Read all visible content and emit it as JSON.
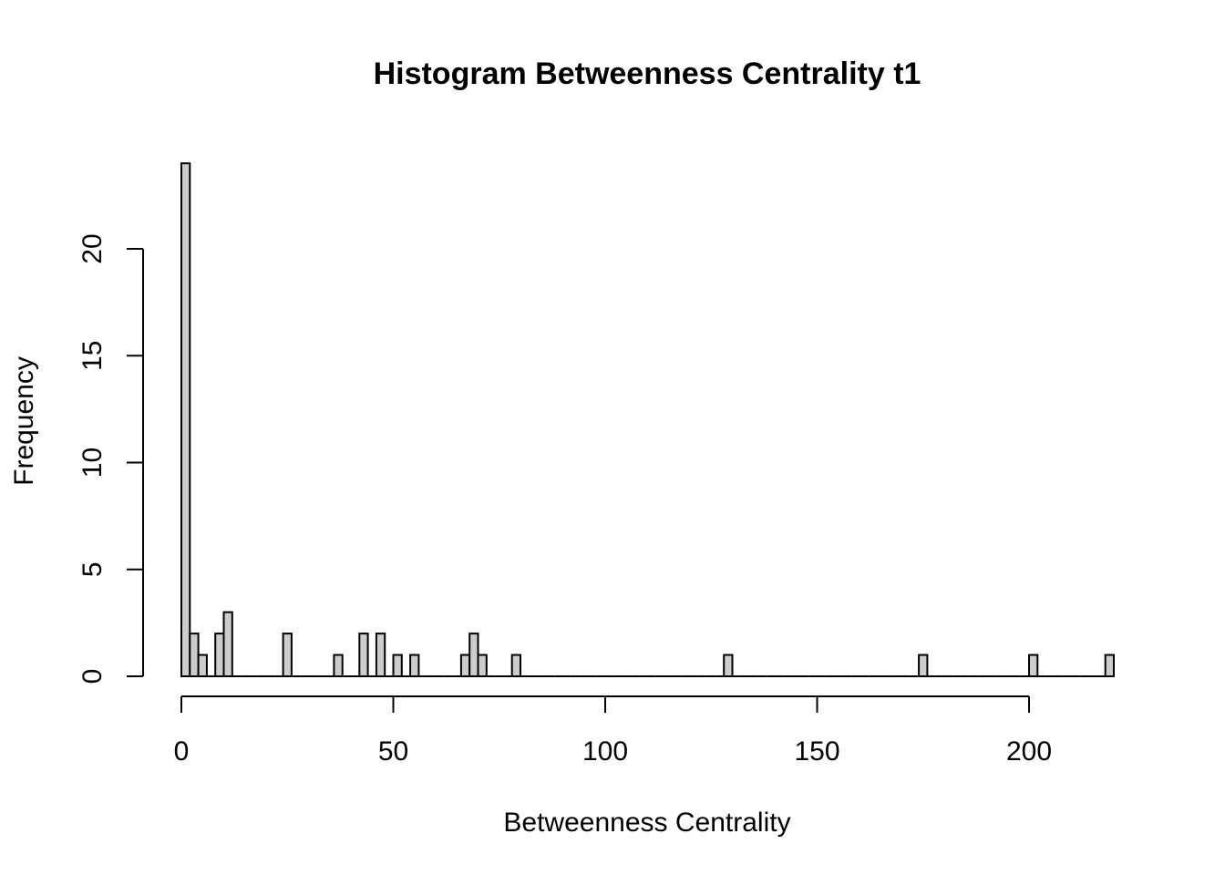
{
  "chart_data": {
    "type": "bar",
    "title": "Histogram Betweenness Centrality t1",
    "xlabel": "Betweenness Centrality",
    "ylabel": "Frequency",
    "bin_width": 2,
    "xlim": [
      0,
      220
    ],
    "ylim": [
      0,
      24
    ],
    "x_ticks": [
      0,
      50,
      100,
      150,
      200
    ],
    "y_ticks": [
      0,
      5,
      10,
      15,
      20
    ],
    "bins": [
      {
        "x0": 0,
        "count": 24
      },
      {
        "x0": 2,
        "count": 2
      },
      {
        "x0": 4,
        "count": 1
      },
      {
        "x0": 6,
        "count": 0
      },
      {
        "x0": 8,
        "count": 2
      },
      {
        "x0": 10,
        "count": 3
      },
      {
        "x0": 12,
        "count": 0
      },
      {
        "x0": 14,
        "count": 0
      },
      {
        "x0": 16,
        "count": 0
      },
      {
        "x0": 18,
        "count": 0
      },
      {
        "x0": 20,
        "count": 0
      },
      {
        "x0": 22,
        "count": 0
      },
      {
        "x0": 24,
        "count": 2
      },
      {
        "x0": 26,
        "count": 0
      },
      {
        "x0": 28,
        "count": 0
      },
      {
        "x0": 30,
        "count": 0
      },
      {
        "x0": 32,
        "count": 0
      },
      {
        "x0": 34,
        "count": 0
      },
      {
        "x0": 36,
        "count": 1
      },
      {
        "x0": 38,
        "count": 0
      },
      {
        "x0": 40,
        "count": 0
      },
      {
        "x0": 42,
        "count": 2
      },
      {
        "x0": 44,
        "count": 0
      },
      {
        "x0": 46,
        "count": 2
      },
      {
        "x0": 48,
        "count": 0
      },
      {
        "x0": 50,
        "count": 1
      },
      {
        "x0": 52,
        "count": 0
      },
      {
        "x0": 54,
        "count": 1
      },
      {
        "x0": 56,
        "count": 0
      },
      {
        "x0": 58,
        "count": 0
      },
      {
        "x0": 60,
        "count": 0
      },
      {
        "x0": 62,
        "count": 0
      },
      {
        "x0": 64,
        "count": 0
      },
      {
        "x0": 66,
        "count": 1
      },
      {
        "x0": 68,
        "count": 2
      },
      {
        "x0": 70,
        "count": 1
      },
      {
        "x0": 72,
        "count": 0
      },
      {
        "x0": 74,
        "count": 0
      },
      {
        "x0": 76,
        "count": 0
      },
      {
        "x0": 78,
        "count": 1
      },
      {
        "x0": 80,
        "count": 0
      },
      {
        "x0": 82,
        "count": 0
      },
      {
        "x0": 84,
        "count": 0
      },
      {
        "x0": 86,
        "count": 0
      },
      {
        "x0": 88,
        "count": 0
      },
      {
        "x0": 90,
        "count": 0
      },
      {
        "x0": 92,
        "count": 0
      },
      {
        "x0": 94,
        "count": 0
      },
      {
        "x0": 96,
        "count": 0
      },
      {
        "x0": 98,
        "count": 0
      },
      {
        "x0": 100,
        "count": 0
      },
      {
        "x0": 102,
        "count": 0
      },
      {
        "x0": 104,
        "count": 0
      },
      {
        "x0": 106,
        "count": 0
      },
      {
        "x0": 108,
        "count": 0
      },
      {
        "x0": 110,
        "count": 0
      },
      {
        "x0": 112,
        "count": 0
      },
      {
        "x0": 114,
        "count": 0
      },
      {
        "x0": 116,
        "count": 0
      },
      {
        "x0": 118,
        "count": 0
      },
      {
        "x0": 120,
        "count": 0
      },
      {
        "x0": 122,
        "count": 0
      },
      {
        "x0": 124,
        "count": 0
      },
      {
        "x0": 126,
        "count": 0
      },
      {
        "x0": 128,
        "count": 1
      },
      {
        "x0": 130,
        "count": 0
      },
      {
        "x0": 132,
        "count": 0
      },
      {
        "x0": 134,
        "count": 0
      },
      {
        "x0": 136,
        "count": 0
      },
      {
        "x0": 138,
        "count": 0
      },
      {
        "x0": 140,
        "count": 0
      },
      {
        "x0": 142,
        "count": 0
      },
      {
        "x0": 144,
        "count": 0
      },
      {
        "x0": 146,
        "count": 0
      },
      {
        "x0": 148,
        "count": 0
      },
      {
        "x0": 150,
        "count": 0
      },
      {
        "x0": 152,
        "count": 0
      },
      {
        "x0": 154,
        "count": 0
      },
      {
        "x0": 156,
        "count": 0
      },
      {
        "x0": 158,
        "count": 0
      },
      {
        "x0": 160,
        "count": 0
      },
      {
        "x0": 162,
        "count": 0
      },
      {
        "x0": 164,
        "count": 0
      },
      {
        "x0": 166,
        "count": 0
      },
      {
        "x0": 168,
        "count": 0
      },
      {
        "x0": 170,
        "count": 0
      },
      {
        "x0": 172,
        "count": 0
      },
      {
        "x0": 174,
        "count": 1
      },
      {
        "x0": 176,
        "count": 0
      },
      {
        "x0": 178,
        "count": 0
      },
      {
        "x0": 180,
        "count": 0
      },
      {
        "x0": 182,
        "count": 0
      },
      {
        "x0": 184,
        "count": 0
      },
      {
        "x0": 186,
        "count": 0
      },
      {
        "x0": 188,
        "count": 0
      },
      {
        "x0": 190,
        "count": 0
      },
      {
        "x0": 192,
        "count": 0
      },
      {
        "x0": 194,
        "count": 0
      },
      {
        "x0": 196,
        "count": 0
      },
      {
        "x0": 198,
        "count": 0
      },
      {
        "x0": 200,
        "count": 1
      },
      {
        "x0": 202,
        "count": 0
      },
      {
        "x0": 204,
        "count": 0
      },
      {
        "x0": 206,
        "count": 0
      },
      {
        "x0": 208,
        "count": 0
      },
      {
        "x0": 210,
        "count": 0
      },
      {
        "x0": 212,
        "count": 0
      },
      {
        "x0": 214,
        "count": 0
      },
      {
        "x0": 216,
        "count": 0
      },
      {
        "x0": 218,
        "count": 1
      }
    ],
    "bar_fill": "#cccccc",
    "bar_stroke": "#000000",
    "grid": false,
    "legend": "none"
  }
}
